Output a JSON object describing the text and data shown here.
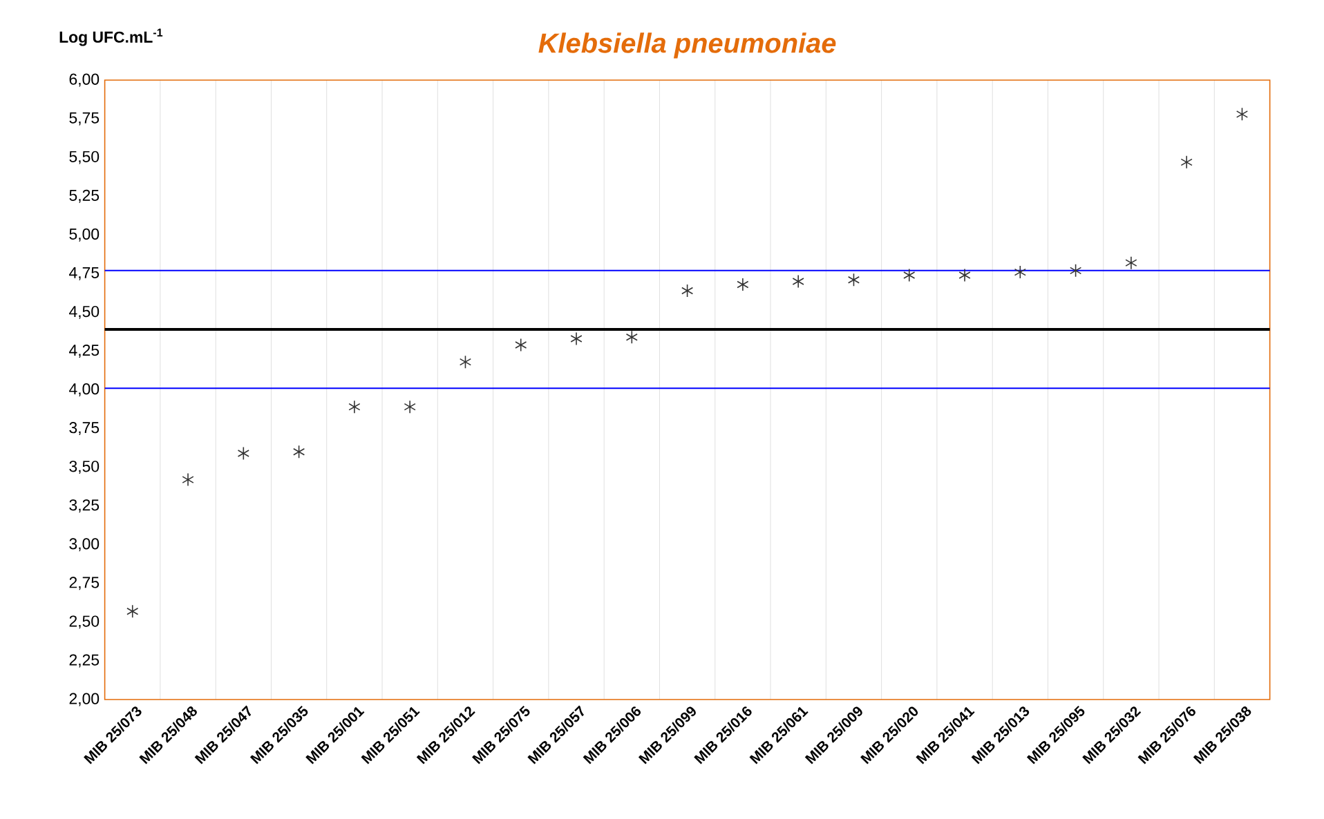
{
  "chart_data": {
    "type": "scatter",
    "title": "Klebsiella pneumoniae",
    "ylabel": "Log UFC.mL$^{-1}$",
    "categories": [
      "MIB 25/073",
      "MIB 25/048",
      "MIB 25/047",
      "MIB 25/035",
      "MIB 25/001",
      "MIB 25/051",
      "MIB 25/012",
      "MIB 25/075",
      "MIB 25/057",
      "MIB 25/006",
      "MIB 25/099",
      "MIB 25/016",
      "MIB 25/061",
      "MIB 25/009",
      "MIB 25/020",
      "MIB 25/041",
      "MIB 25/013",
      "MIB 25/095",
      "MIB 25/032",
      "MIB 25/076",
      "MIB 25/038"
    ],
    "series": [
      {
        "color": "#333333",
        "values": [
          2.57,
          3.42,
          3.59,
          3.6,
          3.89,
          3.89,
          4.18,
          4.29,
          4.33,
          4.34,
          4.64,
          4.68,
          4.7,
          4.71,
          4.74,
          4.74,
          4.76,
          4.77,
          4.82,
          5.47,
          5.78
        ]
      }
    ],
    "marker": "cross",
    "grid": "x",
    "ylim": [
      2,
      6
    ],
    "yticks": [
      {
        "value": 2,
        "label": "2,00"
      },
      {
        "value": 2.25,
        "label": "2,25"
      },
      {
        "value": 2.5,
        "label": "2,50"
      },
      {
        "value": 2.75,
        "label": "2,75"
      },
      {
        "value": 3,
        "label": "3,00"
      },
      {
        "value": 3.25,
        "label": "3,25"
      },
      {
        "value": 3.5,
        "label": "3,50"
      },
      {
        "value": 3.75,
        "label": "3,75"
      },
      {
        "value": 4,
        "label": "4,00"
      },
      {
        "value": 4.25,
        "label": "4,25"
      },
      {
        "value": 4.5,
        "label": "4,50"
      },
      {
        "value": 4.75,
        "label": "4,75"
      },
      {
        "value": 5,
        "label": "5,00"
      },
      {
        "value": 5.25,
        "label": "5,25"
      },
      {
        "value": 5.5,
        "label": "5,50"
      },
      {
        "value": 5.75,
        "label": "5,75"
      },
      {
        "value": 6,
        "label": "6,00"
      }
    ],
    "ref_lines": [
      {
        "axis": "y",
        "value": 4.77,
        "color": "#0000ff"
      },
      {
        "axis": "y",
        "value": 4.39,
        "color": "#000000"
      },
      {
        "axis": "y",
        "value": 4.01,
        "color": "#0000ff"
      }
    ]
  }
}
